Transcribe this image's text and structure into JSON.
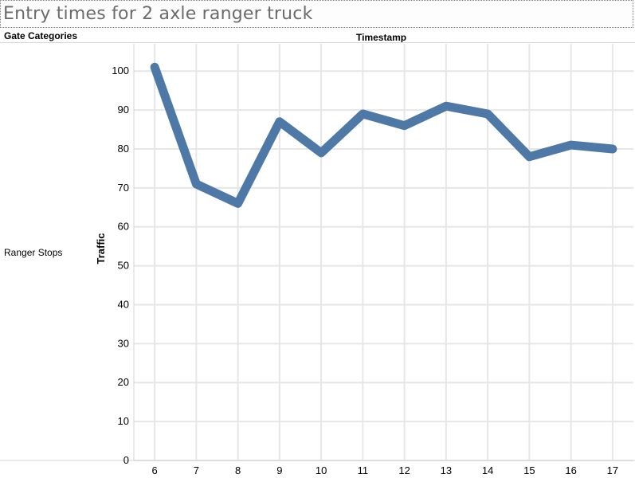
{
  "title": "Entry times for 2 axle ranger truck",
  "header": {
    "left_label": "Gate Categories",
    "column_label": "Timestamp"
  },
  "row_label": "Ranger Stops",
  "colors": {
    "line": "#4e79a7",
    "grid": "#e6e6e6",
    "title_text": "#6b6b6b"
  },
  "chart_data": {
    "type": "line",
    "title": "Entry times for 2 axle ranger truck",
    "xlabel": "Timestamp",
    "ylabel": "Traffic",
    "x": [
      6,
      7,
      8,
      9,
      10,
      11,
      12,
      13,
      14,
      15,
      16,
      17
    ],
    "series": [
      {
        "values": [
          101,
          71,
          66,
          87,
          79,
          89,
          86,
          91,
          89,
          78,
          81,
          80
        ]
      }
    ],
    "ylim": [
      0,
      107
    ],
    "yticks": [
      0,
      10,
      20,
      30,
      40,
      50,
      60,
      70,
      80,
      90,
      100
    ],
    "grid": true,
    "legend": "none"
  }
}
